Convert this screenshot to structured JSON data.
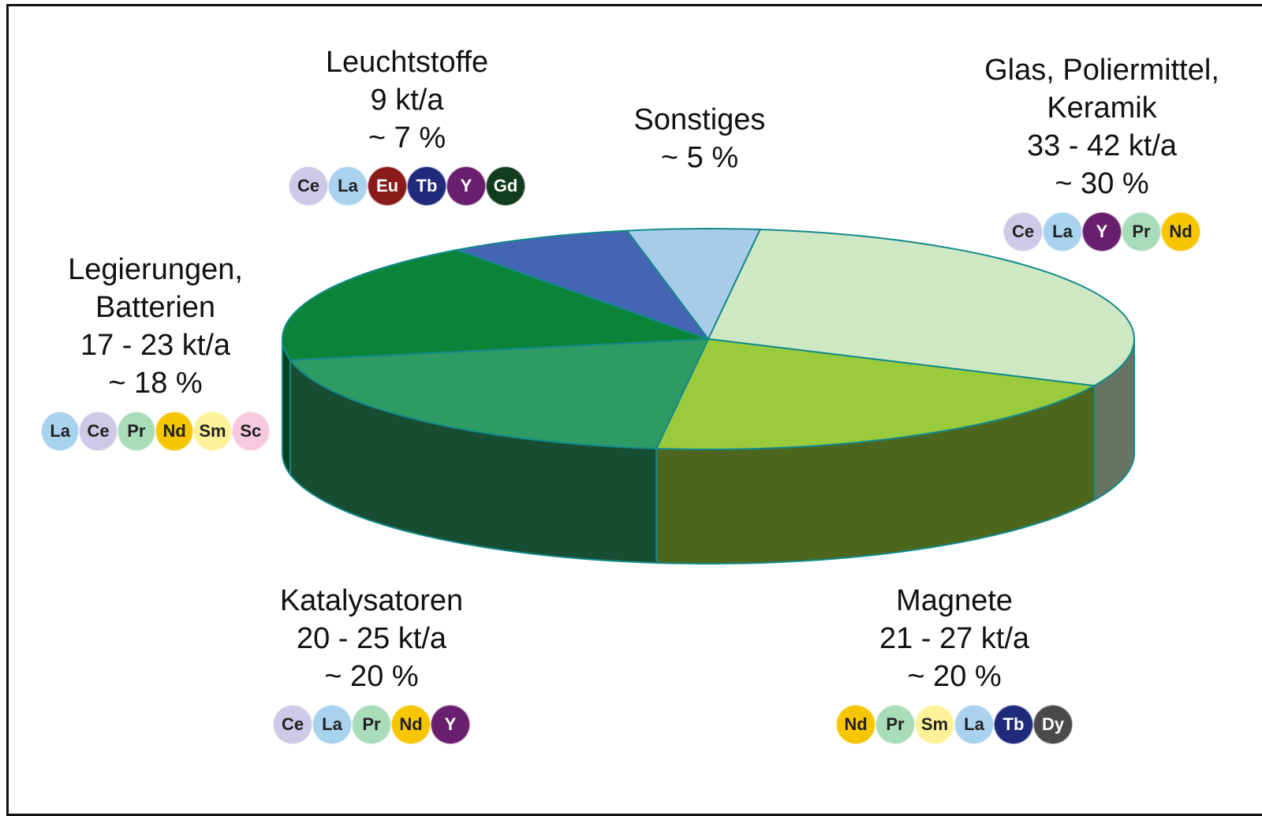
{
  "chart_data": {
    "type": "pie",
    "categories": [
      "Sonstiges",
      "Glas, Poliermittel, Keramik",
      "Magnete",
      "Katalysatoren",
      "Legierungen, Batterien",
      "Leuchtstoffe"
    ],
    "amounts": [
      null,
      "33 - 42 kt/a",
      "21 - 27 kt/a",
      "20 - 25 kt/a",
      "17 - 23 kt/a",
      "9 kt/a"
    ],
    "values": [
      5,
      30,
      20,
      20,
      18,
      7
    ],
    "value_labels": [
      "~ 5 %",
      "~ 30 %",
      "~ 20 %",
      "~ 20 %",
      "~ 18 %",
      "~ 7 %"
    ],
    "colors": [
      "#a8cbea",
      "#cfe8c4",
      "#9acb3c",
      "#2e9a64",
      "#0b8439",
      "#4464b4"
    ],
    "elements": [
      [],
      [
        "Ce",
        "La",
        "Y",
        "Pr",
        "Nd"
      ],
      [
        "Nd",
        "Pr",
        "Sm",
        "La",
        "Tb",
        "Dy"
      ],
      [
        "Ce",
        "La",
        "Pr",
        "Nd",
        "Y"
      ],
      [
        "La",
        "Ce",
        "Pr",
        "Nd",
        "Sm",
        "Sc"
      ],
      [
        "Ce",
        "La",
        "Eu",
        "Tb",
        "Y",
        "Gd"
      ]
    ],
    "element_colors": {
      "Ce": "#cfc8e6",
      "La": "#a9d2ef",
      "Eu": "#8b1a1a",
      "Tb": "#1f2a7a",
      "Y": "#6a1f6e",
      "Gd": "#123c1e",
      "Pr": "#a9dcb9",
      "Nd": "#f7c600",
      "Sm": "#fdf29a",
      "Sc": "#f7c9dd",
      "Dy": "#4a4a4a"
    }
  }
}
